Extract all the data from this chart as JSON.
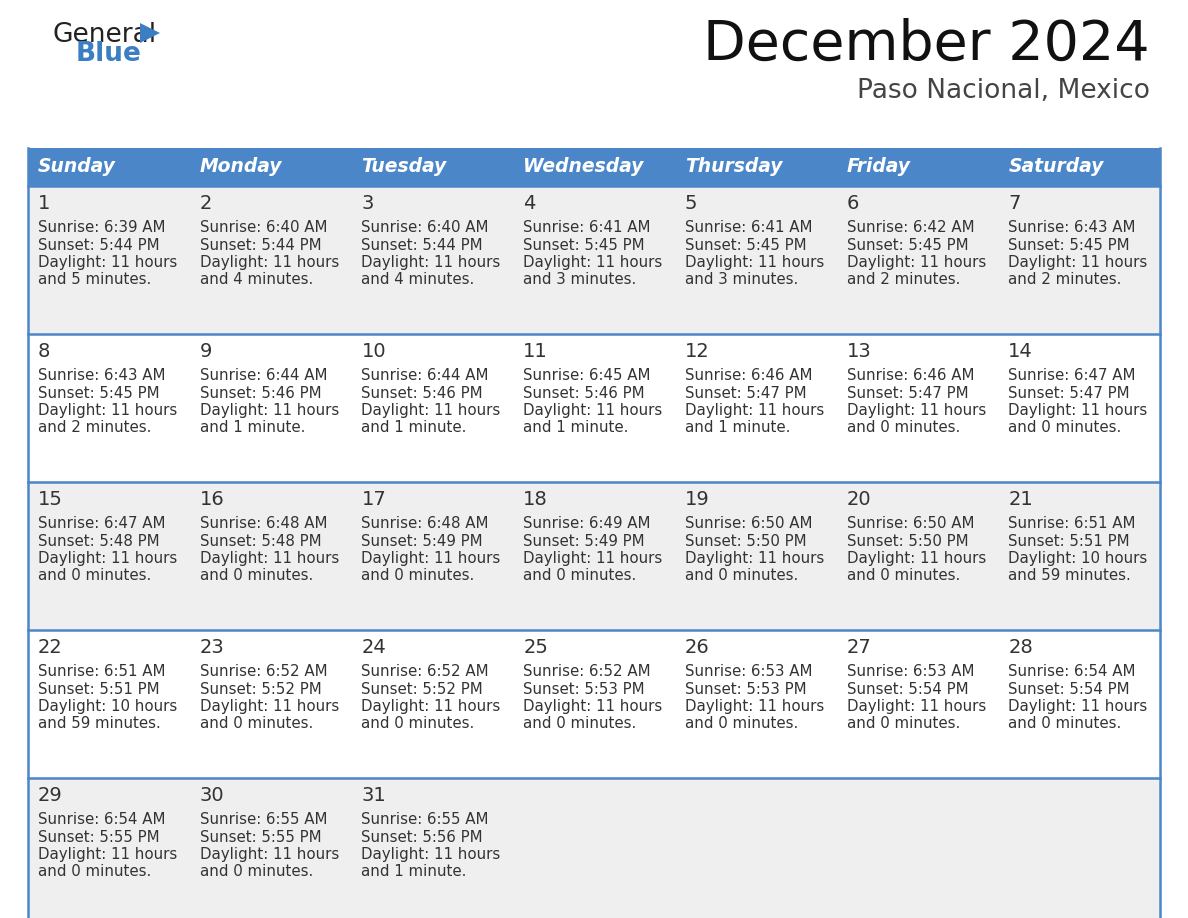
{
  "title": "December 2024",
  "subtitle": "Paso Nacional, Mexico",
  "header_bg_color": "#4A86C8",
  "header_text_color": "#FFFFFF",
  "row_bg_colors": [
    "#EFEFEF",
    "#FFFFFF"
  ],
  "border_color": "#4A86C8",
  "text_color": "#333333",
  "days_of_week": [
    "Sunday",
    "Monday",
    "Tuesday",
    "Wednesday",
    "Thursday",
    "Friday",
    "Saturday"
  ],
  "weeks": [
    [
      {
        "day": 1,
        "sunrise": "6:39 AM",
        "sunset": "5:44 PM",
        "daylight_line1": "11 hours",
        "daylight_line2": "and 5 minutes."
      },
      {
        "day": 2,
        "sunrise": "6:40 AM",
        "sunset": "5:44 PM",
        "daylight_line1": "11 hours",
        "daylight_line2": "and 4 minutes."
      },
      {
        "day": 3,
        "sunrise": "6:40 AM",
        "sunset": "5:44 PM",
        "daylight_line1": "11 hours",
        "daylight_line2": "and 4 minutes."
      },
      {
        "day": 4,
        "sunrise": "6:41 AM",
        "sunset": "5:45 PM",
        "daylight_line1": "11 hours",
        "daylight_line2": "and 3 minutes."
      },
      {
        "day": 5,
        "sunrise": "6:41 AM",
        "sunset": "5:45 PM",
        "daylight_line1": "11 hours",
        "daylight_line2": "and 3 minutes."
      },
      {
        "day": 6,
        "sunrise": "6:42 AM",
        "sunset": "5:45 PM",
        "daylight_line1": "11 hours",
        "daylight_line2": "and 2 minutes."
      },
      {
        "day": 7,
        "sunrise": "6:43 AM",
        "sunset": "5:45 PM",
        "daylight_line1": "11 hours",
        "daylight_line2": "and 2 minutes."
      }
    ],
    [
      {
        "day": 8,
        "sunrise": "6:43 AM",
        "sunset": "5:45 PM",
        "daylight_line1": "11 hours",
        "daylight_line2": "and 2 minutes."
      },
      {
        "day": 9,
        "sunrise": "6:44 AM",
        "sunset": "5:46 PM",
        "daylight_line1": "11 hours",
        "daylight_line2": "and 1 minute."
      },
      {
        "day": 10,
        "sunrise": "6:44 AM",
        "sunset": "5:46 PM",
        "daylight_line1": "11 hours",
        "daylight_line2": "and 1 minute."
      },
      {
        "day": 11,
        "sunrise": "6:45 AM",
        "sunset": "5:46 PM",
        "daylight_line1": "11 hours",
        "daylight_line2": "and 1 minute."
      },
      {
        "day": 12,
        "sunrise": "6:46 AM",
        "sunset": "5:47 PM",
        "daylight_line1": "11 hours",
        "daylight_line2": "and 1 minute."
      },
      {
        "day": 13,
        "sunrise": "6:46 AM",
        "sunset": "5:47 PM",
        "daylight_line1": "11 hours",
        "daylight_line2": "and 0 minutes."
      },
      {
        "day": 14,
        "sunrise": "6:47 AM",
        "sunset": "5:47 PM",
        "daylight_line1": "11 hours",
        "daylight_line2": "and 0 minutes."
      }
    ],
    [
      {
        "day": 15,
        "sunrise": "6:47 AM",
        "sunset": "5:48 PM",
        "daylight_line1": "11 hours",
        "daylight_line2": "and 0 minutes."
      },
      {
        "day": 16,
        "sunrise": "6:48 AM",
        "sunset": "5:48 PM",
        "daylight_line1": "11 hours",
        "daylight_line2": "and 0 minutes."
      },
      {
        "day": 17,
        "sunrise": "6:48 AM",
        "sunset": "5:49 PM",
        "daylight_line1": "11 hours",
        "daylight_line2": "and 0 minutes."
      },
      {
        "day": 18,
        "sunrise": "6:49 AM",
        "sunset": "5:49 PM",
        "daylight_line1": "11 hours",
        "daylight_line2": "and 0 minutes."
      },
      {
        "day": 19,
        "sunrise": "6:50 AM",
        "sunset": "5:50 PM",
        "daylight_line1": "11 hours",
        "daylight_line2": "and 0 minutes."
      },
      {
        "day": 20,
        "sunrise": "6:50 AM",
        "sunset": "5:50 PM",
        "daylight_line1": "11 hours",
        "daylight_line2": "and 0 minutes."
      },
      {
        "day": 21,
        "sunrise": "6:51 AM",
        "sunset": "5:51 PM",
        "daylight_line1": "10 hours",
        "daylight_line2": "and 59 minutes."
      }
    ],
    [
      {
        "day": 22,
        "sunrise": "6:51 AM",
        "sunset": "5:51 PM",
        "daylight_line1": "10 hours",
        "daylight_line2": "and 59 minutes."
      },
      {
        "day": 23,
        "sunrise": "6:52 AM",
        "sunset": "5:52 PM",
        "daylight_line1": "11 hours",
        "daylight_line2": "and 0 minutes."
      },
      {
        "day": 24,
        "sunrise": "6:52 AM",
        "sunset": "5:52 PM",
        "daylight_line1": "11 hours",
        "daylight_line2": "and 0 minutes."
      },
      {
        "day": 25,
        "sunrise": "6:52 AM",
        "sunset": "5:53 PM",
        "daylight_line1": "11 hours",
        "daylight_line2": "and 0 minutes."
      },
      {
        "day": 26,
        "sunrise": "6:53 AM",
        "sunset": "5:53 PM",
        "daylight_line1": "11 hours",
        "daylight_line2": "and 0 minutes."
      },
      {
        "day": 27,
        "sunrise": "6:53 AM",
        "sunset": "5:54 PM",
        "daylight_line1": "11 hours",
        "daylight_line2": "and 0 minutes."
      },
      {
        "day": 28,
        "sunrise": "6:54 AM",
        "sunset": "5:54 PM",
        "daylight_line1": "11 hours",
        "daylight_line2": "and 0 minutes."
      }
    ],
    [
      {
        "day": 29,
        "sunrise": "6:54 AM",
        "sunset": "5:55 PM",
        "daylight_line1": "11 hours",
        "daylight_line2": "and 0 minutes."
      },
      {
        "day": 30,
        "sunrise": "6:55 AM",
        "sunset": "5:55 PM",
        "daylight_line1": "11 hours",
        "daylight_line2": "and 0 minutes."
      },
      {
        "day": 31,
        "sunrise": "6:55 AM",
        "sunset": "5:56 PM",
        "daylight_line1": "11 hours",
        "daylight_line2": "and 1 minute."
      },
      null,
      null,
      null,
      null
    ]
  ],
  "logo_text_general": "General",
  "logo_text_blue": "Blue",
  "logo_blue_color": "#3B7EC2",
  "logo_dark_color": "#222222",
  "logo_triangle_color": "#3B7EC2",
  "fig_width": 11.88,
  "fig_height": 9.18,
  "fig_dpi": 100
}
